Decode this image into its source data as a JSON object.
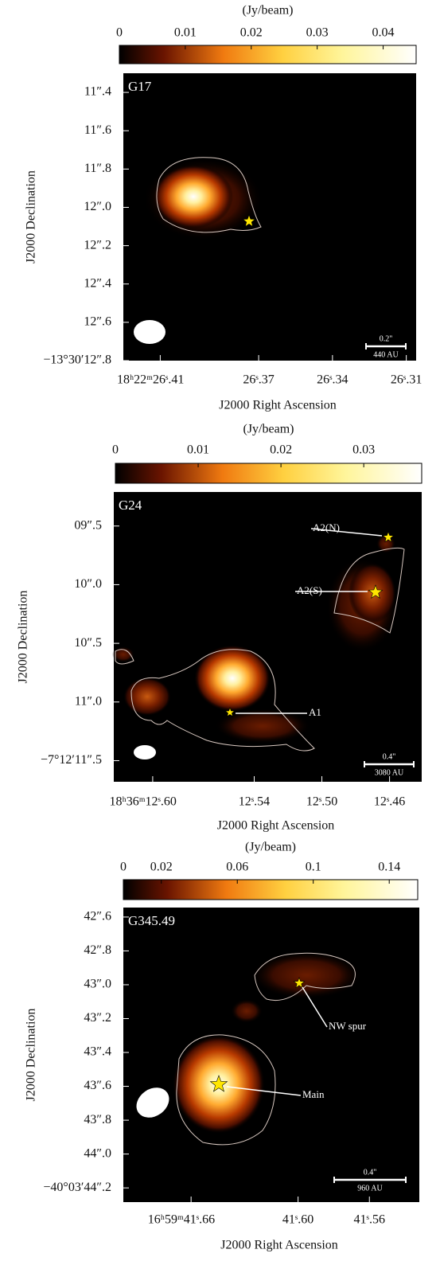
{
  "chart_data": [
    {
      "type": "image",
      "colorbar_label": "(Jy/beam)",
      "clim": [
        0,
        0.045
      ],
      "cticks": [
        0,
        0.01,
        0.02,
        0.03,
        0.04
      ],
      "panel_label": "G17",
      "xlabel": "J2000 Right Ascension",
      "ylabel": "J2000 Declination",
      "xlim": [
        26.425,
        26.306
      ],
      "xticks": [
        {
          "value": 26.41,
          "label": "18ʰ22ᵐ26ˢ.41"
        },
        {
          "value": 26.37,
          "label": "26ˢ.37"
        },
        {
          "value": 26.34,
          "label": "26ˢ.34"
        },
        {
          "value": 26.31,
          "label": "26ˢ.31"
        }
      ],
      "ylim": [
        11.3,
        12.8
      ],
      "yticks": [
        {
          "value": 11.4,
          "label": "11″.4"
        },
        {
          "value": 11.6,
          "label": "11″.6"
        },
        {
          "value": 11.8,
          "label": "11″.8"
        },
        {
          "value": 12.0,
          "label": "12″.0"
        },
        {
          "value": 12.2,
          "label": "12″.2"
        },
        {
          "value": 12.4,
          "label": "12″.4"
        },
        {
          "value": 12.6,
          "label": "12″.6"
        },
        {
          "value": 12.8,
          "label": "−13°30′12″.8"
        }
      ],
      "scale_bar": {
        "length_label": "0.2\"",
        "distance_label": "440 AU"
      },
      "annotations": []
    },
    {
      "type": "image",
      "colorbar_label": "(Jy/beam)",
      "clim": [
        0,
        0.037
      ],
      "cticks": [
        0,
        0.01,
        0.02,
        0.03
      ],
      "panel_label": "G24",
      "xlabel": "J2000 Right Ascension",
      "ylabel": "J2000 Declination",
      "xlim": [
        12.623,
        12.441
      ],
      "xticks": [
        {
          "value": 12.6,
          "label": "18ʰ36ᵐ12ˢ.60"
        },
        {
          "value": 12.54,
          "label": "12ˢ.54"
        },
        {
          "value": 12.5,
          "label": "12ˢ.50"
        },
        {
          "value": 12.46,
          "label": "12ˢ.46"
        }
      ],
      "ylim": [
        9.21,
        11.68
      ],
      "yticks": [
        {
          "value": 9.5,
          "label": "09″.5"
        },
        {
          "value": 10.0,
          "label": "10″.0"
        },
        {
          "value": 10.5,
          "label": "10″.5"
        },
        {
          "value": 11.0,
          "label": "11″.0"
        },
        {
          "value": 11.5,
          "label": "−7°12′11″.5"
        }
      ],
      "scale_bar": {
        "length_label": "0.4\"",
        "distance_label": "3080 AU"
      },
      "annotations": [
        "A2(N)",
        "A2(S)",
        "A1"
      ]
    },
    {
      "type": "image",
      "colorbar_label": "(Jy/beam)",
      "clim": [
        0,
        0.155
      ],
      "cticks": [
        0,
        0.02,
        0.06,
        0.1,
        0.14
      ],
      "panel_label": "G345.49",
      "xlabel": "J2000 Right Ascension",
      "ylabel": "J2000 Declination",
      "xlim": [
        41.698,
        41.532
      ],
      "xticks": [
        {
          "value": 41.66,
          "label": "16ʰ59ᵐ41ˢ.66"
        },
        {
          "value": 41.6,
          "label": "41ˢ.60"
        },
        {
          "value": 41.56,
          "label": "41ˢ.56"
        }
      ],
      "ylim": [
        42.544,
        44.284
      ],
      "yticks": [
        {
          "value": 42.6,
          "label": "42″.6"
        },
        {
          "value": 42.8,
          "label": "42″.8"
        },
        {
          "value": 43.0,
          "label": "43″.0"
        },
        {
          "value": 43.2,
          "label": "43″.2"
        },
        {
          "value": 43.4,
          "label": "43″.4"
        },
        {
          "value": 43.6,
          "label": "43″.6"
        },
        {
          "value": 43.8,
          "label": "43″.8"
        },
        {
          "value": 44.0,
          "label": "44″.0"
        },
        {
          "value": 44.2,
          "label": "−40°03′44″.2"
        }
      ],
      "scale_bar": {
        "length_label": "0.4\"",
        "distance_label": "960 AU"
      },
      "annotations": [
        "NW spur",
        "Main"
      ]
    }
  ]
}
